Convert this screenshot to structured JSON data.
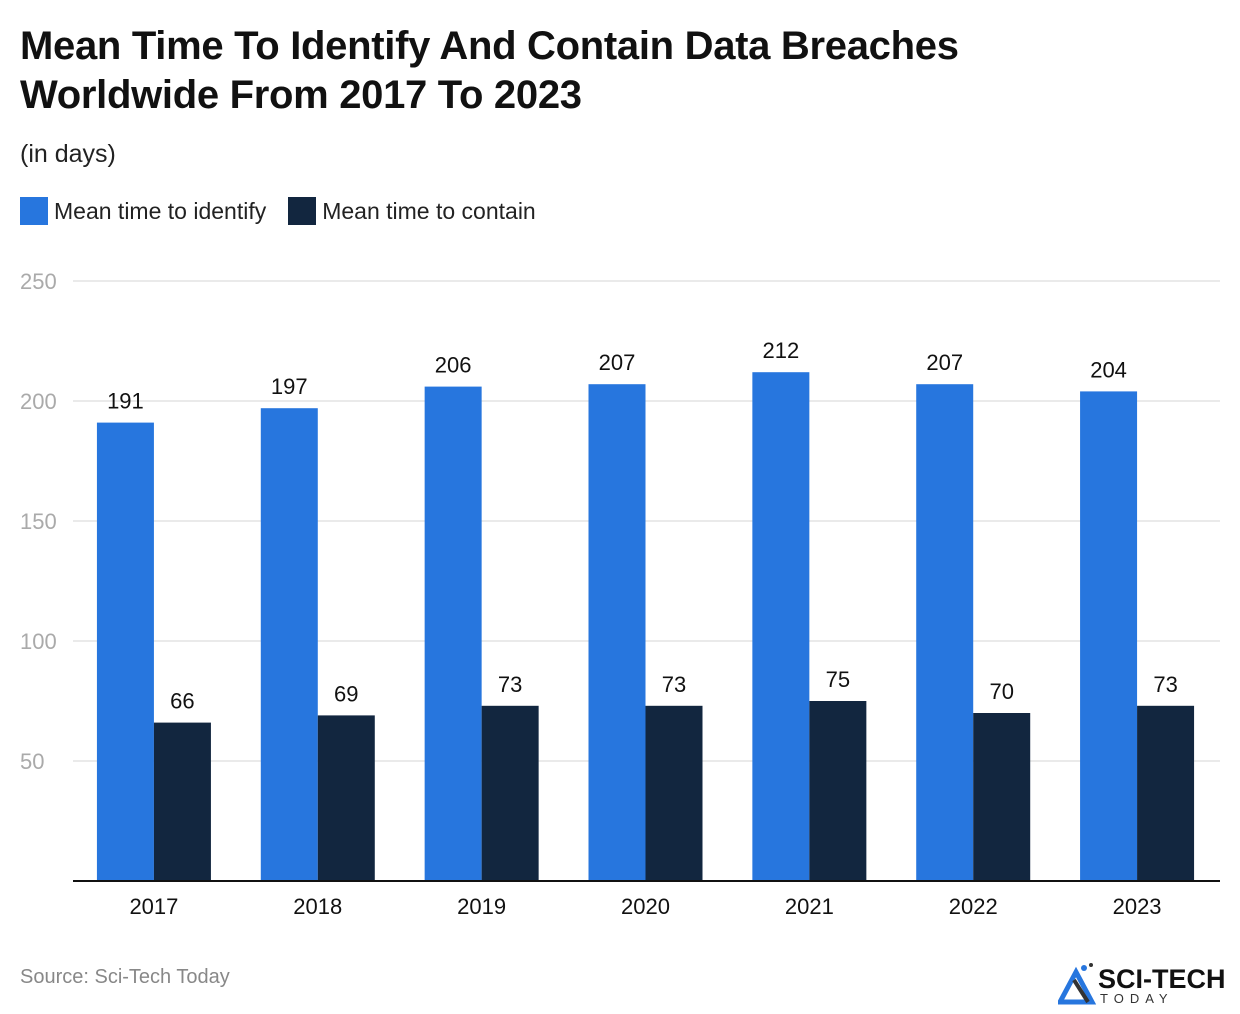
{
  "chart_data": {
    "type": "bar",
    "title": "Mean Time To Identify And Contain Data Breaches Worldwide From 2017 To 2023",
    "subtitle": "(in days)",
    "categories": [
      "2017",
      "2018",
      "2019",
      "2020",
      "2021",
      "2022",
      "2023"
    ],
    "series": [
      {
        "name": "Mean time to identify",
        "color": "#2776DE",
        "values": [
          191,
          197,
          206,
          207,
          212,
          207,
          204
        ]
      },
      {
        "name": "Mean time to contain",
        "color": "#12263F",
        "values": [
          66,
          69,
          73,
          73,
          75,
          70,
          73
        ]
      }
    ],
    "ylim": [
      0,
      250
    ],
    "yticks": [
      50,
      100,
      150,
      200,
      250
    ],
    "grid": true,
    "legend": "top-left",
    "source": "Source: Sci-Tech Today"
  },
  "logo": {
    "text": "SCI-TECH",
    "subtext": "TODAY"
  }
}
